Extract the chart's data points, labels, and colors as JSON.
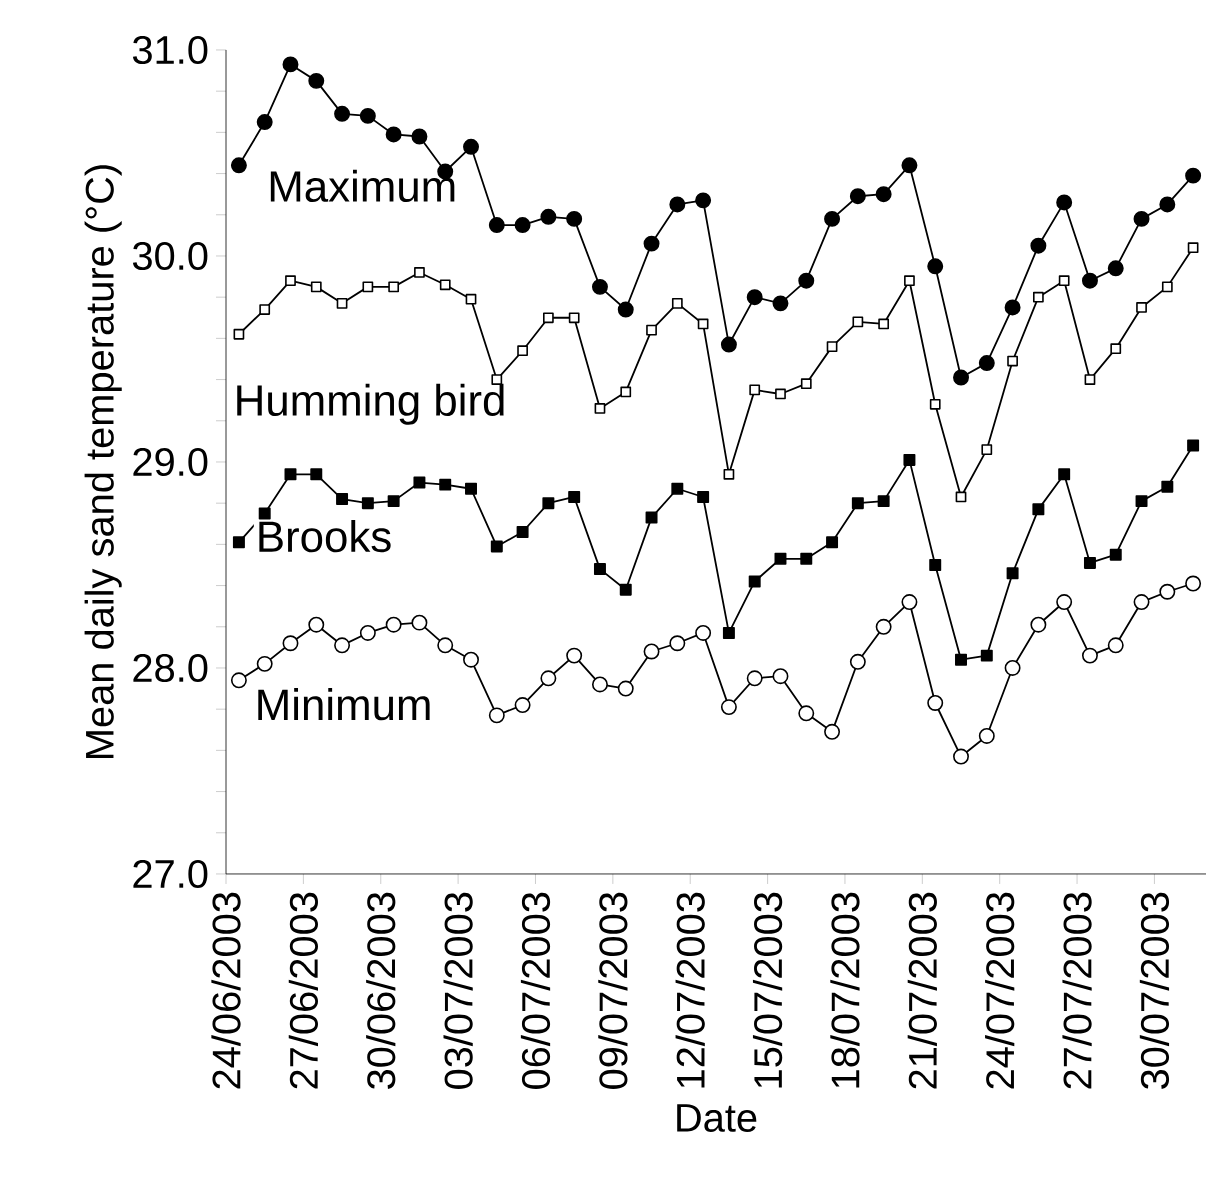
{
  "chart_data": {
    "type": "line",
    "xlabel": "Date",
    "ylabel": "Mean daily sand temperature (°C)",
    "x": [
      "2003-06-24T12:00",
      "2003-06-25T12:00",
      "2003-06-26T12:00",
      "2003-06-27T12:00",
      "2003-06-28T12:00",
      "2003-06-29T12:00",
      "2003-06-30T12:00",
      "2003-07-01T12:00",
      "2003-07-02T12:00",
      "2003-07-03T12:00",
      "2003-07-04T12:00",
      "2003-07-05T12:00",
      "2003-07-06T12:00",
      "2003-07-07T12:00",
      "2003-07-08T12:00",
      "2003-07-09T12:00",
      "2003-07-10T12:00",
      "2003-07-11T12:00",
      "2003-07-12T12:00",
      "2003-07-13T12:00",
      "2003-07-14T12:00",
      "2003-07-15T12:00",
      "2003-07-16T12:00",
      "2003-07-17T12:00",
      "2003-07-18T12:00",
      "2003-07-19T12:00",
      "2003-07-20T12:00",
      "2003-07-21T12:00",
      "2003-07-22T12:00",
      "2003-07-23T12:00",
      "2003-07-24T12:00",
      "2003-07-25T12:00",
      "2003-07-26T12:00",
      "2003-07-27T12:00",
      "2003-07-28T12:00",
      "2003-07-29T12:00",
      "2003-07-30T12:00",
      "2003-07-31T12:00"
    ],
    "series": [
      {
        "name": "Maximum",
        "marker": "circle",
        "color": "#000000",
        "values": [
          30.44,
          30.65,
          30.93,
          30.85,
          30.69,
          30.68,
          30.59,
          30.58,
          30.41,
          30.53,
          30.15,
          30.15,
          30.19,
          30.18,
          29.85,
          29.74,
          30.06,
          30.25,
          30.27,
          29.57,
          29.8,
          29.77,
          29.88,
          30.18,
          30.29,
          30.3,
          30.44,
          29.95,
          29.41,
          29.48,
          29.75,
          30.05,
          30.26,
          29.88,
          29.94,
          30.18,
          30.25,
          30.39
        ]
      },
      {
        "name": "Humming bird",
        "marker": "square",
        "color": "#ffffff",
        "values": [
          29.62,
          29.74,
          29.88,
          29.85,
          29.77,
          29.85,
          29.85,
          29.92,
          29.86,
          29.79,
          29.4,
          29.54,
          29.7,
          29.7,
          29.26,
          29.34,
          29.64,
          29.77,
          29.67,
          28.94,
          29.35,
          29.33,
          29.38,
          29.56,
          29.68,
          29.67,
          29.88,
          29.28,
          28.83,
          29.06,
          29.49,
          29.8,
          29.88,
          29.4,
          29.55,
          29.75,
          29.85,
          30.04
        ]
      },
      {
        "name": "Brooks",
        "marker": "square",
        "color": "#000000",
        "values": [
          28.61,
          28.75,
          28.94,
          28.94,
          28.82,
          28.8,
          28.81,
          28.9,
          28.89,
          28.87,
          28.59,
          28.66,
          28.8,
          28.83,
          28.48,
          28.38,
          28.73,
          28.87,
          28.83,
          28.17,
          28.42,
          28.53,
          28.53,
          28.61,
          28.8,
          28.81,
          29.01,
          28.5,
          28.04,
          28.06,
          28.46,
          28.77,
          28.94,
          28.51,
          28.55,
          28.81,
          28.88,
          29.08
        ]
      },
      {
        "name": "Minimum",
        "marker": "circle",
        "color": "#ffffff",
        "values": [
          27.94,
          28.02,
          28.12,
          28.21,
          28.11,
          28.17,
          28.21,
          28.22,
          28.11,
          28.04,
          27.77,
          27.82,
          27.95,
          28.06,
          27.92,
          27.9,
          28.08,
          28.12,
          28.17,
          27.81,
          27.95,
          27.96,
          27.78,
          27.69,
          28.03,
          28.2,
          28.32,
          27.83,
          27.57,
          27.67,
          28.0,
          28.21,
          28.32,
          28.06,
          28.11,
          28.32,
          28.37,
          28.41
        ]
      }
    ],
    "xlim": [
      "2003-06-24",
      "2003-08-01"
    ],
    "xticks": [
      {
        "value": "2003-06-24",
        "label": "24/06/2003"
      },
      {
        "value": "2003-06-27",
        "label": "27/06/2003"
      },
      {
        "value": "2003-06-30",
        "label": "30/06/2003"
      },
      {
        "value": "2003-07-03",
        "label": "03/07/2003"
      },
      {
        "value": "2003-07-06",
        "label": "06/07/2003"
      },
      {
        "value": "2003-07-09",
        "label": "09/07/2003"
      },
      {
        "value": "2003-07-12",
        "label": "12/07/2003"
      },
      {
        "value": "2003-07-15",
        "label": "15/07/2003"
      },
      {
        "value": "2003-07-18",
        "label": "18/07/2003"
      },
      {
        "value": "2003-07-21",
        "label": "21/07/2003"
      },
      {
        "value": "2003-07-24",
        "label": "24/07/2003"
      },
      {
        "value": "2003-07-27",
        "label": "27/07/2003"
      },
      {
        "value": "2003-07-30",
        "label": "30/07/2003"
      }
    ],
    "ylim": [
      27,
      31
    ],
    "yticks": [
      {
        "value": 27,
        "label": "27.0"
      },
      {
        "value": 27.2,
        "label": null
      },
      {
        "value": 27.4,
        "label": null
      },
      {
        "value": 27.6,
        "label": null
      },
      {
        "value": 27.8,
        "label": null
      },
      {
        "value": 28,
        "label": "28.0"
      },
      {
        "value": 28.2,
        "label": null
      },
      {
        "value": 28.4,
        "label": null
      },
      {
        "value": 28.6,
        "label": null
      },
      {
        "value": 28.8,
        "label": null
      },
      {
        "value": 29,
        "label": "29.0"
      },
      {
        "value": 29.2,
        "label": null
      },
      {
        "value": 29.4,
        "label": null
      },
      {
        "value": 29.6,
        "label": null
      },
      {
        "value": 29.8,
        "label": null
      },
      {
        "value": 30,
        "label": "30.0"
      },
      {
        "value": 30.2,
        "label": null
      },
      {
        "value": 30.4,
        "label": null
      },
      {
        "value": 30.6,
        "label": null
      },
      {
        "value": 30.8,
        "label": null
      },
      {
        "value": 31,
        "label": "31.0"
      }
    ],
    "grid": false,
    "line_style": "solid"
  }
}
